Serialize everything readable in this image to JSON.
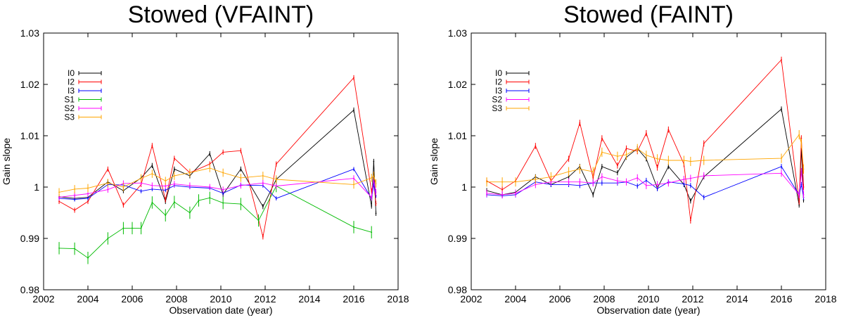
{
  "chart_data": [
    {
      "type": "line",
      "title": "Stowed (VFAINT)",
      "xlabel": "Observation date (year)",
      "ylabel": "Gain slope",
      "xlim": [
        2002,
        2018
      ],
      "ylim": [
        0.98,
        1.03
      ],
      "xticks": [
        "2002",
        "2004",
        "2006",
        "2008",
        "2010",
        "2012",
        "2014",
        "2016",
        "2018"
      ],
      "yticks": [
        "0.98",
        "0.99",
        "1",
        "1.01",
        "1.02",
        "1.03"
      ],
      "legend_position": "top-left",
      "series": [
        {
          "name": "I0",
          "color": "#000000",
          "x": [
            2002.7,
            2003.4,
            2004.0,
            2004.9,
            2005.6,
            2006.4,
            2006.9,
            2007.5,
            2007.9,
            2008.6,
            2009.5,
            2010.1,
            2010.9,
            2011.9,
            2012.5,
            2016.0,
            2016.8,
            2016.9,
            2017.0
          ],
          "y": [
            0.9981,
            0.9978,
            0.998,
            1.001,
            0.9993,
            1.0018,
            1.0042,
            0.9972,
            1.0035,
            1.0022,
            1.0065,
            0.9986,
            1.0035,
            0.9962,
            1.0015,
            1.015,
            0.9963,
            1.005,
            0.9949
          ],
          "err": 0.0005
        },
        {
          "name": "I2",
          "color": "#ff0000",
          "x": [
            2002.7,
            2003.4,
            2004.0,
            2004.9,
            2005.6,
            2006.4,
            2006.9,
            2007.5,
            2007.9,
            2008.6,
            2009.5,
            2010.1,
            2010.9,
            2011.9,
            2012.5,
            2016.0,
            2016.8,
            2016.9,
            2017.0
          ],
          "y": [
            0.9972,
            0.9955,
            0.9972,
            1.0035,
            0.9965,
            1.0005,
            1.0081,
            0.9975,
            1.0056,
            1.0028,
            1.0045,
            1.0068,
            1.0071,
            0.9903,
            1.0045,
            1.0213,
            0.9992,
            1.001,
            0.9968
          ],
          "err": 0.0005
        },
        {
          "name": "I3",
          "color": "#0000ff",
          "x": [
            2002.7,
            2003.4,
            2004.0,
            2004.9,
            2005.6,
            2006.4,
            2006.9,
            2007.5,
            2007.9,
            2008.6,
            2009.5,
            2010.1,
            2010.9,
            2011.9,
            2012.5,
            2016.0,
            2016.8,
            2016.9,
            2017.0
          ],
          "y": [
            0.9978,
            0.9976,
            0.9978,
            1.0005,
            1.0004,
            0.9992,
            0.9996,
            0.9994,
            1.0003,
            1.0,
            0.9998,
            0.9988,
            1.0004,
            1.0003,
            0.9978,
            1.0035,
            0.9978,
            1.0005,
            0.9983
          ],
          "err": 0.0004
        },
        {
          "name": "S1",
          "color": "#00bb00",
          "x": [
            2002.7,
            2003.4,
            2004.0,
            2004.9,
            2005.6,
            2006.0,
            2006.4,
            2006.9,
            2007.5,
            2007.9,
            2008.6,
            2009.0,
            2009.5,
            2010.1,
            2010.9,
            2011.7,
            2012.5,
            2016.0,
            2016.8
          ],
          "y": [
            0.9881,
            0.988,
            0.9862,
            0.99,
            0.992,
            0.992,
            0.992,
            0.997,
            0.9945,
            0.9971,
            0.995,
            0.9974,
            0.9979,
            0.9969,
            0.9967,
            0.9935,
            1.0002,
            0.9922,
            0.9912
          ],
          "err": 0.0012
        },
        {
          "name": "S2",
          "color": "#ff00ff",
          "x": [
            2002.7,
            2003.4,
            2004.0,
            2004.9,
            2005.6,
            2006.4,
            2006.9,
            2007.5,
            2007.9,
            2008.6,
            2009.5,
            2010.1,
            2010.9,
            2011.9,
            2012.5,
            2016.0,
            2016.8,
            2016.9,
            2017.0
          ],
          "y": [
            0.998,
            0.9984,
            0.9987,
            0.9995,
            1.0007,
            1.0008,
            1.0003,
            1.0002,
            1.0006,
            1.0003,
            1.0,
            0.9995,
            1.0003,
            1.0008,
            1.0002,
            1.0017,
            0.998,
            1.0015,
            0.999
          ],
          "err": 0.0006
        },
        {
          "name": "S3",
          "color": "#ffa500",
          "x": [
            2002.7,
            2003.4,
            2004.0,
            2004.9,
            2005.6,
            2006.4,
            2006.9,
            2007.5,
            2007.9,
            2008.6,
            2009.5,
            2010.1,
            2010.9,
            2011.9,
            2012.5,
            2016.0,
            2016.8,
            2016.9,
            2017.0
          ],
          "y": [
            0.999,
            0.9996,
            0.9998,
            1.0008,
            1.0,
            1.0017,
            1.0026,
            1.0012,
            1.0022,
            1.0028,
            1.0037,
            1.0028,
            1.0018,
            1.0022,
            1.0015,
            1.0005,
            1.0018,
            1.0022,
            1.0007
          ],
          "err": 0.0008
        }
      ]
    },
    {
      "type": "line",
      "title": "Stowed (FAINT)",
      "xlabel": "Observation date (year)",
      "ylabel": "Gain slope",
      "xlim": [
        2002,
        2018
      ],
      "ylim": [
        0.98,
        1.03
      ],
      "xticks": [
        "2002",
        "2004",
        "2006",
        "2008",
        "2010",
        "2012",
        "2014",
        "2016",
        "2018"
      ],
      "yticks": [
        "0.98",
        "0.99",
        "1",
        "1.01",
        "1.02",
        "1.03"
      ],
      "legend_position": "top-left",
      "series": [
        {
          "name": "I0",
          "color": "#000000",
          "x": [
            2002.7,
            2003.4,
            2004.0,
            2004.9,
            2005.6,
            2006.4,
            2006.9,
            2007.5,
            2007.9,
            2008.6,
            2009.0,
            2009.5,
            2009.9,
            2010.4,
            2010.9,
            2011.6,
            2011.9,
            2012.5,
            2016.0,
            2016.8,
            2016.9,
            2017.0
          ],
          "y": [
            0.9993,
            0.9985,
            0.999,
            1.002,
            1.0005,
            1.002,
            1.004,
            0.9985,
            1.004,
            1.0028,
            1.0058,
            1.0075,
            1.0055,
            0.9998,
            1.004,
            1.0005,
            0.9973,
            1.002,
            1.0152,
            0.9965,
            1.0075,
            0.9975
          ],
          "err": 0.0005
        },
        {
          "name": "I2",
          "color": "#ff0000",
          "x": [
            2002.7,
            2003.4,
            2004.0,
            2004.9,
            2005.6,
            2006.4,
            2006.9,
            2007.5,
            2007.9,
            2008.6,
            2009.0,
            2009.5,
            2009.9,
            2010.4,
            2010.9,
            2011.6,
            2011.9,
            2012.5,
            2016.0,
            2016.8,
            2016.9,
            2017.0
          ],
          "y": [
            1.0012,
            0.9995,
            1.0012,
            1.008,
            1.0012,
            1.0055,
            1.0125,
            1.0018,
            1.0095,
            1.0042,
            1.0075,
            1.007,
            1.0105,
            1.0038,
            1.0112,
            1.0045,
            0.9935,
            1.0085,
            1.0248,
            0.9972,
            1.0095,
            1.0
          ],
          "err": 0.0006
        },
        {
          "name": "I3",
          "color": "#0000ff",
          "x": [
            2002.7,
            2003.4,
            2004.0,
            2004.9,
            2005.6,
            2006.4,
            2006.9,
            2007.5,
            2007.9,
            2008.6,
            2009.0,
            2009.5,
            2009.9,
            2010.4,
            2010.9,
            2011.6,
            2011.9,
            2012.5,
            2016.0,
            2016.8,
            2016.9,
            2017.0
          ],
          "y": [
            0.9985,
            0.9983,
            0.9985,
            1.001,
            1.0005,
            1.0005,
            1.0003,
            1.0008,
            1.0008,
            1.0008,
            1.001,
            1.0002,
            1.0013,
            0.9997,
            1.001,
            1.0006,
            1.0003,
            0.998,
            1.004,
            0.9985,
            1.0005,
            0.998
          ],
          "err": 0.0005
        },
        {
          "name": "S2",
          "color": "#ff00ff",
          "x": [
            2002.7,
            2003.4,
            2004.0,
            2004.9,
            2005.6,
            2006.4,
            2006.9,
            2007.5,
            2007.9,
            2008.6,
            2009.0,
            2009.5,
            2009.9,
            2010.4,
            2010.9,
            2011.6,
            2011.9,
            2012.5,
            2016.0,
            2016.8,
            2016.9,
            2017.0
          ],
          "y": [
            0.9988,
            0.9985,
            0.9988,
            1.0005,
            1.001,
            1.001,
            1.001,
            1.0008,
            1.002,
            1.0012,
            1.001,
            1.0018,
            1.0003,
            1.0005,
            1.0008,
            1.0015,
            1.0017,
            1.0022,
            1.0027,
            0.9985,
            1.003,
            0.9985
          ],
          "err": 0.0007
        },
        {
          "name": "S3",
          "color": "#ffa500",
          "x": [
            2002.7,
            2003.4,
            2004.0,
            2004.9,
            2005.6,
            2006.4,
            2006.9,
            2007.5,
            2007.9,
            2008.6,
            2009.0,
            2009.5,
            2009.9,
            2010.4,
            2010.9,
            2011.6,
            2011.9,
            2012.5,
            2016.0,
            2016.8,
            2016.9,
            2017.0
          ],
          "y": [
            1.001,
            1.001,
            1.001,
            1.0015,
            1.002,
            1.003,
            1.0035,
            1.003,
            1.0068,
            1.006,
            1.0063,
            1.0075,
            1.0062,
            1.0055,
            1.0052,
            1.0052,
            1.005,
            1.0052,
            1.0056,
            1.0102,
            1.0085,
            1.0035
          ],
          "err": 0.0009
        }
      ]
    }
  ]
}
